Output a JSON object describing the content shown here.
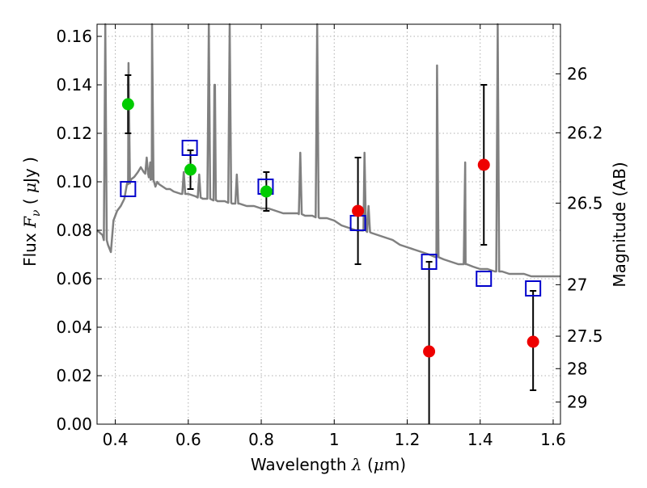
{
  "chart_data": {
    "type": "scatter",
    "xlabel_text": "Wavelength  ",
    "xlabel_symbol": "λ",
    "xlabel_unit_open": " (",
    "xlabel_unit_mu": "μ",
    "xlabel_unit_close": "m)",
    "ylabel_text": "Flux  ",
    "ylabel_symbol": "F",
    "ylabel_sub": "ν",
    "ylabel_unit_open": "  ( ",
    "ylabel_unit_mu": "μ",
    "ylabel_unit_close": "Jy )",
    "y2label": "Magnitude (AB)",
    "xlim": [
      0.35,
      1.62
    ],
    "ylim": [
      0.0,
      0.165
    ],
    "grid": true,
    "x_ticks": [
      {
        "value": 0.4,
        "label": "0.4"
      },
      {
        "value": 0.6,
        "label": "0.6"
      },
      {
        "value": 0.8,
        "label": "0.8"
      },
      {
        "value": 1.0,
        "label": "1"
      },
      {
        "value": 1.2,
        "label": "1.2"
      },
      {
        "value": 1.4,
        "label": "1.4"
      },
      {
        "value": 1.6,
        "label": "1.6"
      }
    ],
    "y_ticks": [
      {
        "value": 0.0,
        "label": "0.00"
      },
      {
        "value": 0.02,
        "label": "0.02"
      },
      {
        "value": 0.04,
        "label": "0.04"
      },
      {
        "value": 0.06,
        "label": "0.06"
      },
      {
        "value": 0.08,
        "label": "0.08"
      },
      {
        "value": 0.1,
        "label": "0.10"
      },
      {
        "value": 0.12,
        "label": "0.12"
      },
      {
        "value": 0.14,
        "label": "0.14"
      },
      {
        "value": 0.16,
        "label": "0.16"
      }
    ],
    "y2_ticks": [
      {
        "label": "26",
        "magnitude": 26.0
      },
      {
        "label": "26.2",
        "magnitude": 26.2
      },
      {
        "label": "26.5",
        "magnitude": 26.5
      },
      {
        "label": "27",
        "magnitude": 27.0
      },
      {
        "label": "27.5",
        "magnitude": 27.5
      },
      {
        "label": "28",
        "magnitude": 28.0
      },
      {
        "label": "29",
        "magnitude": 29.0
      }
    ],
    "colors": {
      "spectrum": "#808080",
      "green": "#00cc00",
      "red": "#ee0000",
      "model_box": "#0000cc",
      "error_bar": "#000000",
      "grid": "#b0b0b0"
    },
    "series": [
      {
        "kind": "spectrum_line",
        "points": [
          [
            0.35,
            0.08
          ],
          [
            0.365,
            0.078
          ],
          [
            0.38,
            0.074
          ],
          [
            0.388,
            0.071
          ],
          [
            0.395,
            0.084
          ],
          [
            0.405,
            0.088
          ],
          [
            0.415,
            0.09
          ],
          [
            0.425,
            0.093
          ],
          [
            0.435,
            0.099
          ],
          [
            0.443,
            0.101
          ],
          [
            0.452,
            0.102
          ],
          [
            0.462,
            0.104
          ],
          [
            0.47,
            0.106
          ],
          [
            0.478,
            0.104
          ],
          [
            0.49,
            0.103
          ],
          [
            0.5,
            0.101
          ],
          [
            0.51,
            0.098
          ],
          [
            0.515,
            0.1
          ],
          [
            0.52,
            0.099
          ],
          [
            0.53,
            0.098
          ],
          [
            0.54,
            0.097
          ],
          [
            0.55,
            0.097
          ],
          [
            0.56,
            0.096
          ],
          [
            0.58,
            0.095
          ],
          [
            0.6,
            0.095
          ],
          [
            0.62,
            0.094
          ],
          [
            0.64,
            0.093
          ],
          [
            0.66,
            0.093
          ],
          [
            0.68,
            0.092
          ],
          [
            0.7,
            0.092
          ],
          [
            0.72,
            0.091
          ],
          [
            0.74,
            0.091
          ],
          [
            0.76,
            0.09
          ],
          [
            0.78,
            0.09
          ],
          [
            0.8,
            0.089
          ],
          [
            0.82,
            0.089
          ],
          [
            0.84,
            0.088
          ],
          [
            0.86,
            0.087
          ],
          [
            0.88,
            0.087
          ],
          [
            0.9,
            0.087
          ],
          [
            0.92,
            0.086
          ],
          [
            0.94,
            0.086
          ],
          [
            0.96,
            0.085
          ],
          [
            0.98,
            0.085
          ],
          [
            1.0,
            0.084
          ],
          [
            1.02,
            0.082
          ],
          [
            1.04,
            0.081
          ],
          [
            1.06,
            0.08
          ],
          [
            1.08,
            0.08
          ],
          [
            1.1,
            0.079
          ],
          [
            1.12,
            0.078
          ],
          [
            1.14,
            0.077
          ],
          [
            1.16,
            0.076
          ],
          [
            1.18,
            0.074
          ],
          [
            1.2,
            0.073
          ],
          [
            1.22,
            0.072
          ],
          [
            1.24,
            0.071
          ],
          [
            1.26,
            0.07
          ],
          [
            1.28,
            0.069
          ],
          [
            1.3,
            0.068
          ],
          [
            1.32,
            0.067
          ],
          [
            1.34,
            0.066
          ],
          [
            1.36,
            0.066
          ],
          [
            1.38,
            0.065
          ],
          [
            1.4,
            0.064
          ],
          [
            1.42,
            0.064
          ],
          [
            1.44,
            0.063
          ],
          [
            1.46,
            0.063
          ],
          [
            1.48,
            0.062
          ],
          [
            1.5,
            0.062
          ],
          [
            1.52,
            0.062
          ],
          [
            1.54,
            0.061
          ],
          [
            1.56,
            0.061
          ],
          [
            1.58,
            0.061
          ],
          [
            1.6,
            0.061
          ],
          [
            1.62,
            0.061
          ]
        ],
        "emission_lines": [
          {
            "x": 0.3727,
            "peak": 0.165
          },
          {
            "x": 0.4363,
            "peak": 0.149
          },
          {
            "x": 0.4861,
            "peak": 0.11
          },
          {
            "x": 0.4959,
            "peak": 0.108
          },
          {
            "x": 0.5007,
            "peak": 0.165
          },
          {
            "x": 0.5876,
            "peak": 0.104
          },
          {
            "x": 0.63,
            "peak": 0.103
          },
          {
            "x": 0.6563,
            "peak": 0.165
          },
          {
            "x": 0.6717,
            "peak": 0.14
          },
          {
            "x": 0.6731,
            "peak": 0.14
          },
          {
            "x": 0.7136,
            "peak": 0.165
          },
          {
            "x": 0.733,
            "peak": 0.103
          },
          {
            "x": 0.9069,
            "peak": 0.112
          },
          {
            "x": 0.9532,
            "peak": 0.165
          },
          {
            "x": 1.083,
            "peak": 0.112
          },
          {
            "x": 1.094,
            "peak": 0.09
          },
          {
            "x": 1.2818,
            "peak": 0.148
          },
          {
            "x": 1.448,
            "peak": 0.165
          },
          {
            "x": 1.359,
            "peak": 0.108
          }
        ]
      },
      {
        "kind": "green_points",
        "points": [
          {
            "x": 0.435,
            "y": 0.132,
            "err": 0.012
          },
          {
            "x": 0.606,
            "y": 0.105,
            "err": 0.008
          },
          {
            "x": 0.814,
            "y": 0.096,
            "err": 0.008
          }
        ]
      },
      {
        "kind": "red_points",
        "points": [
          {
            "x": 1.065,
            "y": 0.088,
            "err_up": 0.022,
            "err_down": 0.022
          },
          {
            "x": 1.26,
            "y": 0.03,
            "err_up": 0.037,
            "err_down": 0.035
          },
          {
            "x": 1.41,
            "y": 0.107,
            "err_up": 0.033,
            "err_down": 0.033
          },
          {
            "x": 1.545,
            "y": 0.034,
            "err_up": 0.021,
            "err_down": 0.02
          }
        ]
      },
      {
        "kind": "model_boxes",
        "points": [
          {
            "x": 0.435,
            "y": 0.097
          },
          {
            "x": 0.604,
            "y": 0.114
          },
          {
            "x": 0.812,
            "y": 0.098
          },
          {
            "x": 1.065,
            "y": 0.083
          },
          {
            "x": 1.26,
            "y": 0.067
          },
          {
            "x": 1.41,
            "y": 0.06
          },
          {
            "x": 1.545,
            "y": 0.056
          }
        ]
      }
    ]
  }
}
